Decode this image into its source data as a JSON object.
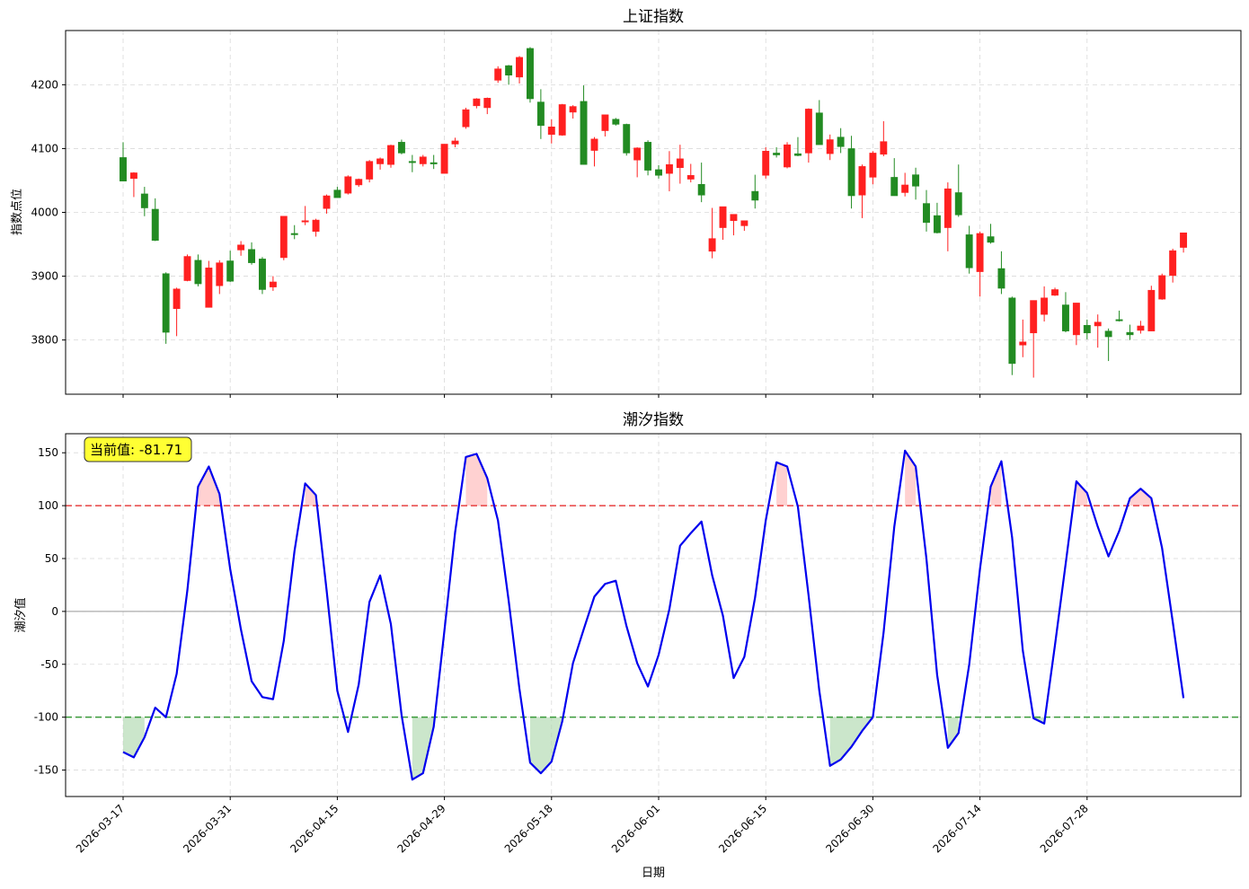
{
  "colors": {
    "up": "#ff2020",
    "down": "#228b22",
    "tide_line": "#0000ee",
    "upper_threshold": "#e84040",
    "lower_threshold": "#3a9a3a",
    "fill_above": "#ffb3b3",
    "fill_below": "#a8d5a8",
    "badge_bg": "#ffff33"
  },
  "chart_data": [
    {
      "type": "candlestick",
      "title": "上证指数",
      "ylabel": "指数点位",
      "ylim": [
        3715,
        4285
      ],
      "yticks": [
        3800,
        3900,
        4000,
        4100,
        4200
      ],
      "xticks": [
        {
          "label": "2026-03-17",
          "index": 0
        },
        {
          "label": "2026-03-31",
          "index": 10
        },
        {
          "label": "2026-04-15",
          "index": 20
        },
        {
          "label": "2026-04-29",
          "index": 30
        },
        {
          "label": "2026-05-18",
          "index": 40
        },
        {
          "label": "2026-06-01",
          "index": 50
        },
        {
          "label": "2026-06-15",
          "index": 60
        },
        {
          "label": "2026-06-30",
          "index": 70
        },
        {
          "label": "2026-07-14",
          "index": 80
        },
        {
          "label": "2026-07-28",
          "index": 90
        }
      ],
      "ohlc": [
        [
          4086,
          4110,
          4049,
          4049
        ],
        [
          4053,
          4063,
          4024,
          4062
        ],
        [
          4029,
          4040,
          3994,
          4007
        ],
        [
          4005,
          4022,
          3955,
          3956
        ],
        [
          3904,
          3906,
          3794,
          3812
        ],
        [
          3849,
          3882,
          3806,
          3880
        ],
        [
          3893,
          3934,
          3892,
          3931
        ],
        [
          3925,
          3934,
          3884,
          3888
        ],
        [
          3851,
          3924,
          3851,
          3913
        ],
        [
          3885,
          3925,
          3872,
          3921
        ],
        [
          3924,
          3940,
          3891,
          3892
        ],
        [
          3941,
          3955,
          3932,
          3949
        ],
        [
          3942,
          3953,
          3918,
          3921
        ],
        [
          3927,
          3930,
          3872,
          3879
        ],
        [
          3883,
          3900,
          3877,
          3891
        ],
        [
          3929,
          3994,
          3925,
          3994
        ],
        [
          3967,
          3980,
          3958,
          3966
        ],
        [
          3985,
          4010,
          3980,
          3987
        ],
        [
          3970,
          3990,
          3962,
          3988
        ],
        [
          4006,
          4028,
          3998,
          4026
        ],
        [
          4035,
          4040,
          4023,
          4023
        ],
        [
          4030,
          4058,
          4028,
          4056
        ],
        [
          4043,
          4053,
          4040,
          4052
        ],
        [
          4052,
          4082,
          4047,
          4080
        ],
        [
          4076,
          4086,
          4067,
          4084
        ],
        [
          4075,
          4106,
          4070,
          4105
        ],
        [
          4110,
          4114,
          4091,
          4093
        ],
        [
          4080,
          4090,
          4063,
          4079
        ],
        [
          4076,
          4090,
          4072,
          4087
        ],
        [
          4078,
          4090,
          4068,
          4076
        ],
        [
          4061,
          4107,
          4061,
          4107
        ],
        [
          4107,
          4117,
          4102,
          4112
        ],
        [
          4134,
          4164,
          4131,
          4161
        ],
        [
          4167,
          4179,
          4163,
          4178
        ],
        [
          4164,
          4180,
          4154,
          4179
        ],
        [
          4207,
          4229,
          4203,
          4225
        ],
        [
          4230,
          4231,
          4200,
          4215
        ],
        [
          4212,
          4245,
          4202,
          4243
        ],
        [
          4257,
          4259,
          4172,
          4178
        ],
        [
          4173,
          4193,
          4115,
          4136
        ],
        [
          4122,
          4146,
          4108,
          4134
        ],
        [
          4121,
          4170,
          4120,
          4169
        ],
        [
          4157,
          4168,
          4147,
          4166
        ],
        [
          4174,
          4199,
          4075,
          4075
        ],
        [
          4097,
          4118,
          4072,
          4115
        ],
        [
          4128,
          4150,
          4119,
          4153
        ],
        [
          4146,
          4148,
          4136,
          4138
        ],
        [
          4138,
          4139,
          4089,
          4093
        ],
        [
          4082,
          4102,
          4055,
          4101
        ],
        [
          4110,
          4113,
          4058,
          4066
        ],
        [
          4067,
          4074,
          4053,
          4058
        ],
        [
          4061,
          4096,
          4033,
          4075
        ],
        [
          4070,
          4106,
          4045,
          4084
        ],
        [
          4052,
          4076,
          4047,
          4058
        ],
        [
          4044,
          4078,
          4016,
          4027
        ],
        [
          3939,
          4007,
          3928,
          3959
        ],
        [
          3976,
          4008,
          3957,
          4009
        ],
        [
          3987,
          3995,
          3964,
          3997
        ],
        [
          3979,
          3987,
          3971,
          3987
        ],
        [
          4033,
          4059,
          4006,
          4019
        ],
        [
          4058,
          4102,
          4053,
          4096
        ],
        [
          4093,
          4102,
          4086,
          4090
        ],
        [
          4071,
          4110,
          4069,
          4106
        ],
        [
          4092,
          4118,
          4088,
          4089
        ],
        [
          4093,
          4163,
          4078,
          4162
        ],
        [
          4156,
          4176,
          4109,
          4106
        ],
        [
          4092,
          4122,
          4082,
          4114
        ],
        [
          4118,
          4132,
          4093,
          4103
        ],
        [
          4100,
          4120,
          4006,
          4026
        ],
        [
          4027,
          4075,
          3991,
          4072
        ],
        [
          4055,
          4096,
          4044,
          4093
        ],
        [
          4091,
          4143,
          4088,
          4111
        ],
        [
          4055,
          4085,
          4026,
          4026
        ],
        [
          4031,
          4062,
          4025,
          4043
        ],
        [
          4059,
          4070,
          4020,
          4041
        ],
        [
          4014,
          4035,
          3970,
          3984
        ],
        [
          3995,
          4015,
          3967,
          3968
        ],
        [
          3976,
          4047,
          3939,
          4037
        ],
        [
          4031,
          4075,
          3993,
          3996
        ],
        [
          3965,
          3979,
          3904,
          3913
        ],
        [
          3907,
          3970,
          3868,
          3967
        ],
        [
          3962,
          3982,
          3951,
          3953
        ],
        [
          3912,
          3939,
          3872,
          3881
        ],
        [
          3866,
          3868,
          3745,
          3763
        ],
        [
          3792,
          3832,
          3773,
          3797
        ],
        [
          3811,
          3862,
          3741,
          3862
        ],
        [
          3840,
          3884,
          3829,
          3866
        ],
        [
          3870,
          3882,
          3869,
          3879
        ],
        [
          3855,
          3875,
          3812,
          3814
        ],
        [
          3808,
          3858,
          3792,
          3858
        ],
        [
          3823,
          3832,
          3801,
          3811
        ],
        [
          3822,
          3840,
          3788,
          3828
        ],
        [
          3814,
          3818,
          3767,
          3805
        ],
        [
          3832,
          3846,
          3829,
          3831
        ],
        [
          3812,
          3824,
          3800,
          3808
        ],
        [
          3815,
          3830,
          3810,
          3822
        ],
        [
          3814,
          3885,
          3814,
          3878
        ],
        [
          3864,
          3904,
          3863,
          3901
        ],
        [
          3901,
          3943,
          3890,
          3940
        ],
        [
          3945,
          3968,
          3937,
          3968
        ]
      ]
    },
    {
      "type": "line",
      "title": "潮汐指数",
      "ylabel": "潮汐值",
      "xlabel": "日期",
      "ylim": [
        -175,
        168
      ],
      "yticks": [
        -150,
        -100,
        -50,
        0,
        50,
        100,
        150
      ],
      "upper_threshold": 100,
      "lower_threshold": -100,
      "badge": "当前值: -81.71",
      "values": [
        -133,
        -138,
        -119,
        -91,
        -100,
        -59,
        20,
        118,
        137,
        111,
        40,
        -17,
        -66,
        -81,
        -83,
        -28,
        57,
        121,
        110,
        20,
        -75,
        -114,
        -69,
        9,
        34,
        -12,
        -98,
        -159,
        -153,
        -109,
        -18,
        75,
        146,
        149,
        126,
        86,
        10,
        -73,
        -143,
        -153,
        -142,
        -104,
        -49,
        -17,
        14,
        26,
        29,
        -14,
        -49,
        -71,
        -41,
        2,
        62,
        74,
        85,
        34,
        -4,
        -63,
        -43,
        13,
        86,
        141,
        137,
        99,
        15,
        -75,
        -146,
        -140,
        -128,
        -113,
        -100,
        -20,
        80,
        152,
        137,
        50,
        -60,
        -129,
        -115,
        -50,
        40,
        118,
        142,
        70,
        -37,
        -101,
        -106,
        -32,
        45,
        123,
        112,
        80,
        52,
        76,
        107,
        116,
        107,
        60,
        -10,
        -82
      ]
    }
  ]
}
